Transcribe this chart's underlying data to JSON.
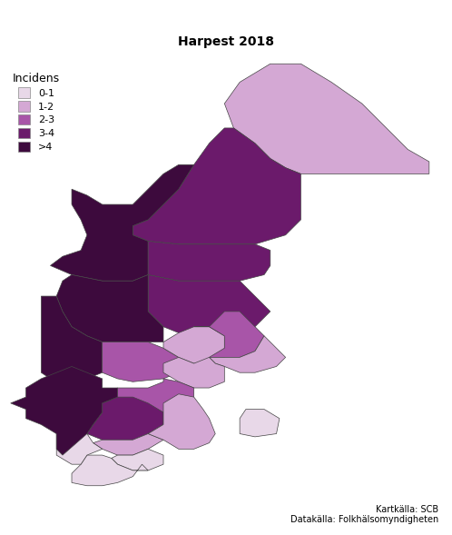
{
  "title": "Harpest 2018",
  "legend_title": "Incidens",
  "legend_labels": [
    "0-1",
    "1-2",
    "2-3",
    "3-4",
    ">4"
  ],
  "legend_colors": [
    "#e8d8e8",
    "#d4a8d4",
    "#a855a8",
    "#6b1a6b",
    "#3d0a3d"
  ],
  "source_line1": "Kartkälla: SCB",
  "source_line2": "Datakälla: Folkhälsomyndigheten",
  "background_color": "#ffffff",
  "region_incidence": {
    "Norrbotten": 1.5,
    "Vasterbotten": 3.5,
    "Jamtland": 4.5,
    "Vasternorrland": 3.5,
    "Dalarna": 4.5,
    "Gavleborg": 3.5,
    "Uppsala": 2.5,
    "Varmland": 4.5,
    "Orebro": 2.5,
    "Vastmanland": 1.5,
    "Stockholm": 1.5,
    "Sodermanland": 1.5,
    "Ostergotland": 2.5,
    "Vastra Gotaland": 4.5,
    "Jonkoping": 3.5,
    "Kronoberg": 1.5,
    "Kalmar": 1.5,
    "Gotland": 0.5,
    "Halland": 0.5,
    "Blekinge": 0.5,
    "Skane": 0.5
  },
  "edge_color": "#444444",
  "edge_width": 0.5,
  "figsize": [
    4.98,
    5.89
  ],
  "dpi": 100
}
